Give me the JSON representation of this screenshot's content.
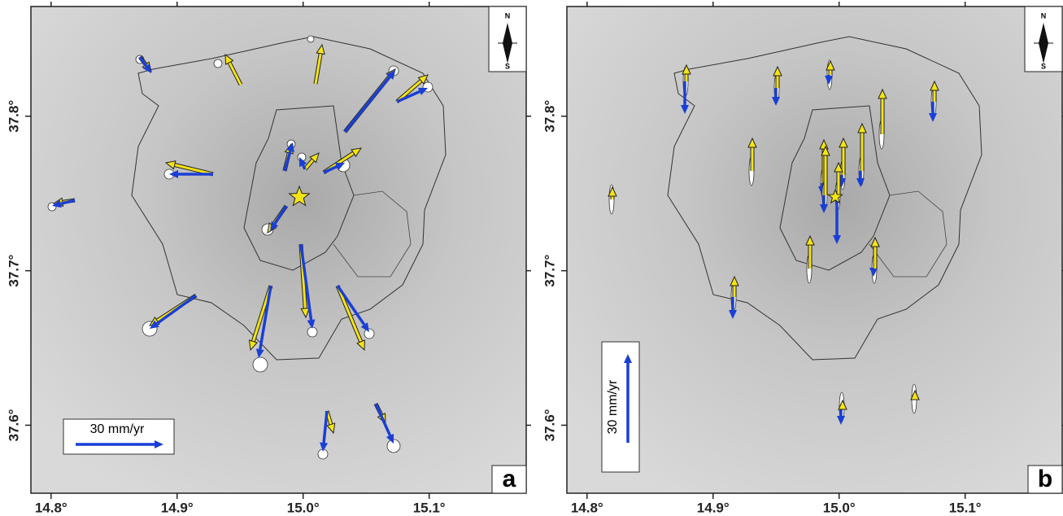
{
  "panels": [
    {
      "label": "a",
      "scale_label": "30 mm/yr"
    },
    {
      "label": "b",
      "scale_label": "30 mm/yr"
    }
  ],
  "north_arrow": {
    "north": "N",
    "south": "S"
  },
  "xlim": [
    14.784,
    15.177
  ],
  "ylim": [
    37.556,
    37.871
  ],
  "xticks": [
    {
      "value": 14.8,
      "label": "14.8°"
    },
    {
      "value": 14.9,
      "label": "14.9°"
    },
    {
      "value": 15.0,
      "label": "15.0°"
    },
    {
      "value": 15.1,
      "label": "15.1°"
    }
  ],
  "yticks": [
    {
      "value": 37.6,
      "label": "37.6°"
    },
    {
      "value": 37.7,
      "label": "37.7°"
    },
    {
      "value": 37.8,
      "label": "37.8°"
    }
  ]
}
